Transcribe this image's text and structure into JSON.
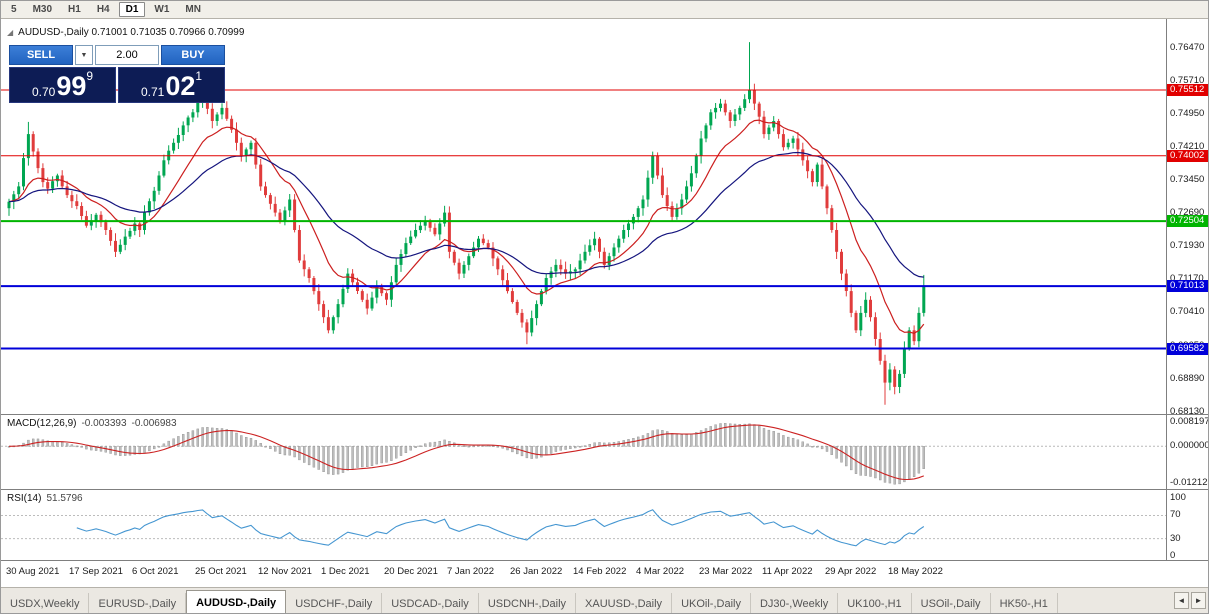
{
  "toolbar": {
    "timeframes": [
      {
        "label": "5",
        "active": false
      },
      {
        "label": "M30",
        "active": false
      },
      {
        "label": "H1",
        "active": false
      },
      {
        "label": "H4",
        "active": false
      },
      {
        "label": "D1",
        "active": true
      },
      {
        "label": "W1",
        "active": false
      },
      {
        "label": "MN",
        "active": false
      }
    ]
  },
  "chart_header": {
    "text": "AUDUSD-,Daily  0.71001 0.71035 0.70966 0.70999"
  },
  "trade_panel": {
    "sell_label": "SELL",
    "buy_label": "BUY",
    "volume": "2.00",
    "sell": {
      "prefix": "0.70",
      "big": "99",
      "sup": "9"
    },
    "buy": {
      "prefix": "0.71",
      "big": "02",
      "sup": "1"
    }
  },
  "indicators": {
    "macd_name": "MACD(12,26,9)",
    "macd_main": "-0.003393",
    "macd_signal": "-0.006983",
    "rsi_name": "RSI(14)",
    "rsi_value": "51.5796"
  },
  "tab_bar": {
    "scroll_left": "◄",
    "scroll_right": "►",
    "tabs": [
      {
        "label": "USDX,Weekly",
        "active": false
      },
      {
        "label": "EURUSD-,Daily",
        "active": false
      },
      {
        "label": "AUDUSD-,Daily",
        "active": true
      },
      {
        "label": "USDCHF-,Daily",
        "active": false
      },
      {
        "label": "USDCAD-,Daily",
        "active": false
      },
      {
        "label": "USDCNH-,Daily",
        "active": false
      },
      {
        "label": "XAUUSD-,Daily",
        "active": false
      },
      {
        "label": "UKOil-,Daily",
        "active": false
      },
      {
        "label": "DJ30-,Weekly",
        "active": false
      },
      {
        "label": "UK100-,H1",
        "active": false
      },
      {
        "label": "USOil-,Daily",
        "active": false
      },
      {
        "label": "HK50-,H1",
        "active": false
      }
    ]
  },
  "chart_data": {
    "type": "candlestick",
    "symbol": "AUDUSD-,Daily",
    "ohlc_display": {
      "open": "0.71001",
      "high": "0.71035",
      "low": "0.70966",
      "close": "0.70999"
    },
    "y_axis": {
      "range_top": 0.7714,
      "range_bottom": 0.6808,
      "ticks": [
        "0.76470",
        "0.75710",
        "0.74950",
        "0.74210",
        "0.73450",
        "0.72690",
        "0.71930",
        "0.71170",
        "0.70410",
        "0.69650",
        "0.68890",
        "0.68130"
      ]
    },
    "levels": [
      {
        "price": 0.75512,
        "label": "0.75512",
        "color": "#e10000",
        "width": 1
      },
      {
        "price": 0.74002,
        "label": "0.74002",
        "color": "#e10000",
        "width": 1
      },
      {
        "price": 0.72504,
        "label": "0.72504",
        "color": "#00b400",
        "width": 2
      },
      {
        "price": 0.71013,
        "label": "0.71013",
        "color": "#0000d9",
        "width": 2
      },
      {
        "price": 0.69582,
        "label": "0.69582",
        "color": "#0000d9",
        "width": 2
      }
    ],
    "x_axis": {
      "labels": [
        "30 Aug 2021",
        "17 Sep 2021",
        "6 Oct 2021",
        "25 Oct 2021",
        "12 Nov 2021",
        "1 Dec 2021",
        "20 Dec 2021",
        "7 Jan 2022",
        "26 Jan 2022",
        "14 Feb 2022",
        "4 Mar 2022",
        "23 Mar 2022",
        "11 Apr 2022",
        "29 Apr 2022",
        "18 May 2022"
      ]
    },
    "candles": {
      "first_open": 0.728,
      "closes": [
        0.7295,
        0.7312,
        0.733,
        0.7395,
        0.745,
        0.741,
        0.7372,
        0.734,
        0.7325,
        0.7342,
        0.7355,
        0.733,
        0.731,
        0.7296,
        0.7285,
        0.7262,
        0.724,
        0.7252,
        0.7265,
        0.7248,
        0.723,
        0.7205,
        0.718,
        0.7196,
        0.7215,
        0.7228,
        0.7245,
        0.723,
        0.727,
        0.7296,
        0.732,
        0.7355,
        0.739,
        0.7412,
        0.743,
        0.7448,
        0.747,
        0.7488,
        0.75,
        0.7522,
        0.7535,
        0.7508,
        0.748,
        0.7495,
        0.751,
        0.7485,
        0.746,
        0.743,
        0.74,
        0.7415,
        0.743,
        0.738,
        0.733,
        0.731,
        0.729,
        0.727,
        0.725,
        0.7275,
        0.73,
        0.723,
        0.716,
        0.714,
        0.712,
        0.709,
        0.706,
        0.703,
        0.7,
        0.703,
        0.706,
        0.7095,
        0.713,
        0.711,
        0.709,
        0.707,
        0.705,
        0.7075,
        0.71,
        0.7085,
        0.707,
        0.711,
        0.715,
        0.7175,
        0.72,
        0.7215,
        0.723,
        0.724,
        0.725,
        0.7235,
        0.722,
        0.7245,
        0.727,
        0.718,
        0.7155,
        0.713,
        0.715,
        0.717,
        0.719,
        0.721,
        0.72,
        0.719,
        0.7165,
        0.714,
        0.7115,
        0.709,
        0.7065,
        0.704,
        0.7018,
        0.6995,
        0.7028,
        0.706,
        0.709,
        0.712,
        0.7135,
        0.715,
        0.714,
        0.713,
        0.7135,
        0.714,
        0.716,
        0.718,
        0.7195,
        0.721,
        0.718,
        0.715,
        0.717,
        0.719,
        0.721,
        0.723,
        0.7245,
        0.726,
        0.728,
        0.73,
        0.735,
        0.74,
        0.7355,
        0.731,
        0.7285,
        0.726,
        0.728,
        0.73,
        0.733,
        0.736,
        0.74,
        0.744,
        0.747,
        0.75,
        0.751,
        0.752,
        0.75,
        0.748,
        0.7495,
        0.751,
        0.753,
        0.755,
        0.752,
        0.749,
        0.745,
        0.7465,
        0.748,
        0.745,
        0.742,
        0.743,
        0.744,
        0.7415,
        0.739,
        0.7365,
        0.734,
        0.738,
        0.733,
        0.728,
        0.723,
        0.718,
        0.713,
        0.709,
        0.704,
        0.7,
        0.704,
        0.707,
        0.703,
        0.698,
        0.693,
        0.688,
        0.691,
        0.687,
        0.69,
        0.696,
        0.7,
        0.6975,
        0.704,
        0.71
      ],
      "special": {
        "4": {
          "h": 0.7478
        },
        "22": {
          "l": 0.7168
        },
        "66": {
          "l": 0.6993
        },
        "107": {
          "l": 0.6968
        },
        "153": {
          "h": 0.7661
        },
        "181": {
          "l": 0.6829
        },
        "189": {
          "h": 0.7127
        }
      }
    },
    "colors": {
      "up": "#00a651",
      "down": "#e03c3c",
      "ma_fast": "#cc1f1f",
      "ma_slow": "#15157e",
      "macd_hist": "#bdbdbd",
      "macd_signal": "#cc2222",
      "rsi": "#4596d1"
    },
    "macd": {
      "range_top": 0.0105,
      "range_bottom": -0.0143,
      "ticks": [
        {
          "v": 0.008197,
          "label": "0.008197"
        },
        {
          "v": 0.0,
          "label": "0.000000"
        },
        {
          "v": -0.012123,
          "label": "-0.012123"
        }
      ]
    },
    "rsi": {
      "range_top": 114,
      "range_bottom": -7,
      "guides": [
        70,
        30
      ],
      "ticks": [
        {
          "v": 100,
          "label": "100"
        },
        {
          "v": 70,
          "label": "70"
        },
        {
          "v": 30,
          "label": "30"
        },
        {
          "v": 0,
          "label": "0"
        }
      ]
    }
  }
}
